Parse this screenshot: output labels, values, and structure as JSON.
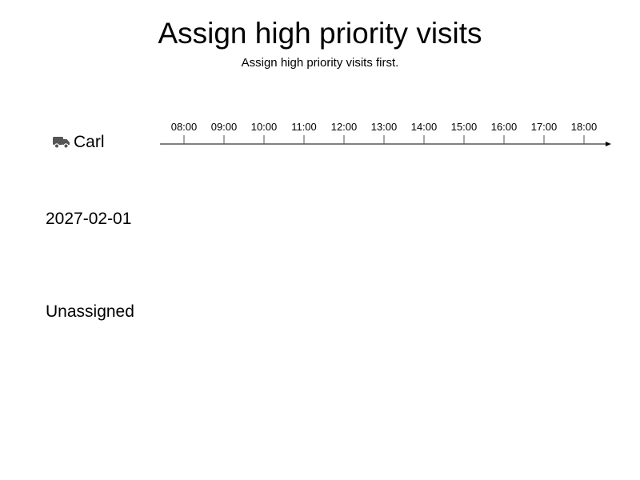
{
  "header": {
    "title": "Assign high priority visits",
    "subtitle": "Assign high priority visits first."
  },
  "vehicle": {
    "name": "Carl",
    "icon": "truck-icon",
    "icon_color": "#555555"
  },
  "timeline": {
    "hours": [
      "08:00",
      "09:00",
      "10:00",
      "11:00",
      "12:00",
      "13:00",
      "14:00",
      "15:00",
      "16:00",
      "17:00",
      "18:00"
    ]
  },
  "rows": {
    "date": "2027-02-01",
    "unassigned": "Unassigned"
  }
}
